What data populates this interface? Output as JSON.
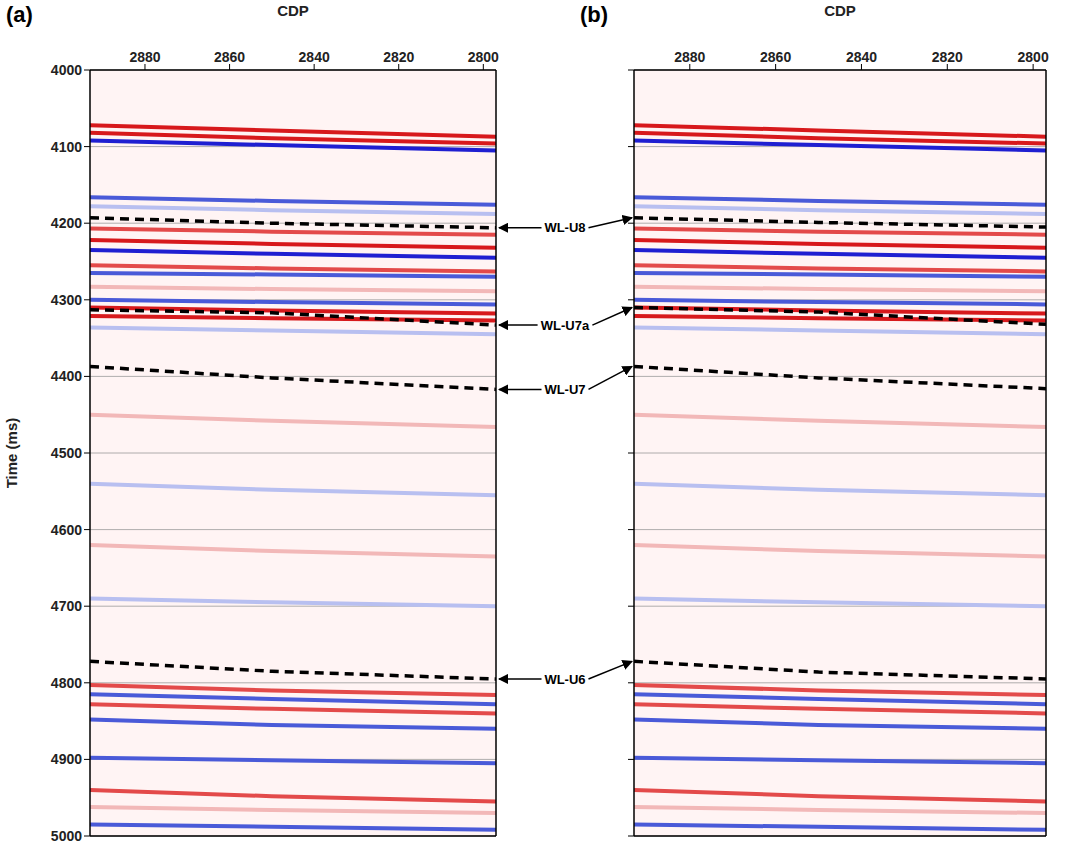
{
  "chart_data": [
    {
      "type": "line",
      "title": "(a)",
      "x_label": "CDP",
      "y_label": "Time (ms)",
      "x": [
        2893,
        2850,
        2797
      ],
      "xlim": [
        2893,
        2797
      ],
      "xticks": [
        2880,
        2860,
        2840,
        2820,
        2800
      ],
      "ylim": [
        4000,
        5000
      ],
      "yticks": [
        4000,
        4100,
        4200,
        4300,
        4400,
        4500,
        4600,
        4700,
        4800,
        4900,
        5000
      ],
      "grid": true,
      "series": [
        {
          "color": "#d7191c",
          "line_style": "solid",
          "values": [
            4072,
            4079,
            4087
          ]
        },
        {
          "color": "#d7191c",
          "line_style": "solid",
          "values": [
            4082,
            4089,
            4096
          ]
        },
        {
          "color": "#1f1fd1",
          "line_style": "solid",
          "values": [
            4092,
            4098,
            4105
          ]
        },
        {
          "color": "#4a5ad8",
          "line_style": "solid",
          "values": [
            4166,
            4171,
            4176
          ]
        },
        {
          "color": "#b8bff0",
          "line_style": "solid",
          "values": [
            4178,
            4183,
            4188
          ]
        },
        {
          "color": "#e34a4a",
          "line_style": "solid",
          "values": [
            4207,
            4211,
            4215
          ]
        },
        {
          "color": "#d7191c",
          "line_style": "solid",
          "values": [
            4222,
            4227,
            4232
          ]
        },
        {
          "color": "#1f1fd1",
          "line_style": "solid",
          "values": [
            4235,
            4240,
            4245
          ]
        },
        {
          "color": "#e34a4a",
          "line_style": "solid",
          "values": [
            4255,
            4259,
            4263
          ]
        },
        {
          "color": "#4a5ad8",
          "line_style": "solid",
          "values": [
            4265,
            4267,
            4270
          ]
        },
        {
          "color": "#f2b8b8",
          "line_style": "solid",
          "values": [
            4283,
            4286,
            4289
          ]
        },
        {
          "color": "#4a5ad8",
          "line_style": "solid",
          "values": [
            4300,
            4303,
            4306
          ]
        },
        {
          "color": "#d7191c",
          "line_style": "solid",
          "values": [
            4310,
            4314,
            4318
          ]
        },
        {
          "color": "#d7191c",
          "line_style": "solid",
          "values": [
            4321,
            4324,
            4327
          ]
        },
        {
          "color": "#b8bff0",
          "line_style": "solid",
          "values": [
            4336,
            4340,
            4345
          ]
        },
        {
          "color": "#f2b8b8",
          "line_style": "solid",
          "values": [
            4450,
            4458,
            4466
          ]
        },
        {
          "color": "#b8bff0",
          "line_style": "solid",
          "values": [
            4540,
            4548,
            4555
          ]
        },
        {
          "color": "#f2b8b8",
          "line_style": "solid",
          "values": [
            4620,
            4628,
            4635
          ]
        },
        {
          "color": "#b8bff0",
          "line_style": "solid",
          "values": [
            4690,
            4695,
            4700
          ]
        },
        {
          "color": "#e34a4a",
          "line_style": "solid",
          "values": [
            4803,
            4810,
            4816
          ]
        },
        {
          "color": "#4a5ad8",
          "line_style": "solid",
          "values": [
            4815,
            4821,
            4828
          ]
        },
        {
          "color": "#e34a4a",
          "line_style": "solid",
          "values": [
            4828,
            4834,
            4840
          ]
        },
        {
          "color": "#4a5ad8",
          "line_style": "solid",
          "values": [
            4848,
            4855,
            4860
          ]
        },
        {
          "color": "#4a5ad8",
          "line_style": "solid",
          "values": [
            4898,
            4901,
            4905
          ]
        },
        {
          "color": "#e34a4a",
          "line_style": "solid",
          "values": [
            4940,
            4948,
            4955
          ]
        },
        {
          "color": "#f2b8b8",
          "line_style": "solid",
          "values": [
            4962,
            4966,
            4970
          ]
        },
        {
          "color": "#4a5ad8",
          "line_style": "solid",
          "values": [
            4985,
            4988,
            4992
          ]
        },
        {
          "name": "WL-U8",
          "color": "#000000",
          "line_style": "dashed",
          "values": [
            4193,
            4200,
            4206
          ]
        },
        {
          "name": "WL-U7a",
          "color": "#000000",
          "line_style": "dashed",
          "values": [
            4313,
            4317,
            4333
          ]
        },
        {
          "name": "WL-U7",
          "color": "#000000",
          "line_style": "dashed",
          "values": [
            4387,
            4402,
            4417
          ]
        },
        {
          "name": "WL-U6",
          "color": "#000000",
          "line_style": "dashed",
          "values": [
            4772,
            4785,
            4795
          ]
        }
      ]
    },
    {
      "type": "line",
      "title": "(b)",
      "x_label": "CDP",
      "x": [
        2893,
        2850,
        2797
      ],
      "xlim": [
        2893,
        2797
      ],
      "xticks": [
        2880,
        2860,
        2840,
        2820,
        2800
      ],
      "ylim": [
        4000,
        5000
      ],
      "yticks": [
        4000,
        4100,
        4200,
        4300,
        4400,
        4500,
        4600,
        4700,
        4800,
        4900,
        5000
      ],
      "grid": true,
      "tick_labels": "x",
      "series": [
        {
          "color": "#d7191c",
          "line_style": "solid",
          "values": [
            4072,
            4079,
            4087
          ]
        },
        {
          "color": "#d7191c",
          "line_style": "solid",
          "values": [
            4082,
            4089,
            4096
          ]
        },
        {
          "color": "#1f1fd1",
          "line_style": "solid",
          "values": [
            4092,
            4098,
            4105
          ]
        },
        {
          "color": "#4a5ad8",
          "line_style": "solid",
          "values": [
            4166,
            4171,
            4176
          ]
        },
        {
          "color": "#b8bff0",
          "line_style": "solid",
          "values": [
            4178,
            4183,
            4188
          ]
        },
        {
          "color": "#e34a4a",
          "line_style": "solid",
          "values": [
            4207,
            4211,
            4215
          ]
        },
        {
          "color": "#d7191c",
          "line_style": "solid",
          "values": [
            4222,
            4227,
            4232
          ]
        },
        {
          "color": "#1f1fd1",
          "line_style": "solid",
          "values": [
            4235,
            4240,
            4245
          ]
        },
        {
          "color": "#e34a4a",
          "line_style": "solid",
          "values": [
            4255,
            4259,
            4263
          ]
        },
        {
          "color": "#4a5ad8",
          "line_style": "solid",
          "values": [
            4265,
            4267,
            4270
          ]
        },
        {
          "color": "#f2b8b8",
          "line_style": "solid",
          "values": [
            4283,
            4286,
            4289
          ]
        },
        {
          "color": "#4a5ad8",
          "line_style": "solid",
          "values": [
            4300,
            4303,
            4306
          ]
        },
        {
          "color": "#d7191c",
          "line_style": "solid",
          "values": [
            4310,
            4314,
            4318
          ]
        },
        {
          "color": "#d7191c",
          "line_style": "solid",
          "values": [
            4321,
            4324,
            4327
          ]
        },
        {
          "color": "#b8bff0",
          "line_style": "solid",
          "values": [
            4336,
            4340,
            4345
          ]
        },
        {
          "color": "#f2b8b8",
          "line_style": "solid",
          "values": [
            4450,
            4458,
            4466
          ]
        },
        {
          "color": "#b8bff0",
          "line_style": "solid",
          "values": [
            4540,
            4548,
            4555
          ]
        },
        {
          "color": "#f2b8b8",
          "line_style": "solid",
          "values": [
            4620,
            4628,
            4635
          ]
        },
        {
          "color": "#b8bff0",
          "line_style": "solid",
          "values": [
            4690,
            4695,
            4700
          ]
        },
        {
          "color": "#e34a4a",
          "line_style": "solid",
          "values": [
            4803,
            4810,
            4816
          ]
        },
        {
          "color": "#4a5ad8",
          "line_style": "solid",
          "values": [
            4815,
            4821,
            4828
          ]
        },
        {
          "color": "#e34a4a",
          "line_style": "solid",
          "values": [
            4828,
            4834,
            4840
          ]
        },
        {
          "color": "#4a5ad8",
          "line_style": "solid",
          "values": [
            4848,
            4855,
            4860
          ]
        },
        {
          "color": "#4a5ad8",
          "line_style": "solid",
          "values": [
            4898,
            4901,
            4905
          ]
        },
        {
          "color": "#e34a4a",
          "line_style": "solid",
          "values": [
            4940,
            4948,
            4955
          ]
        },
        {
          "color": "#f2b8b8",
          "line_style": "solid",
          "values": [
            4962,
            4966,
            4970
          ]
        },
        {
          "color": "#4a5ad8",
          "line_style": "solid",
          "values": [
            4985,
            4988,
            4992
          ]
        },
        {
          "name": "WL-U8",
          "color": "#000000",
          "line_style": "dashed",
          "values": [
            4193,
            4199,
            4205
          ]
        },
        {
          "name": "WL-U7a",
          "color": "#000000",
          "line_style": "dashed",
          "values": [
            4310,
            4316,
            4332
          ]
        },
        {
          "name": "WL-U7",
          "color": "#000000",
          "line_style": "dashed",
          "values": [
            4387,
            4402,
            4416
          ]
        },
        {
          "name": "WL-U6",
          "color": "#000000",
          "line_style": "dashed",
          "values": [
            4772,
            4786,
            4795
          ]
        }
      ]
    }
  ]
}
